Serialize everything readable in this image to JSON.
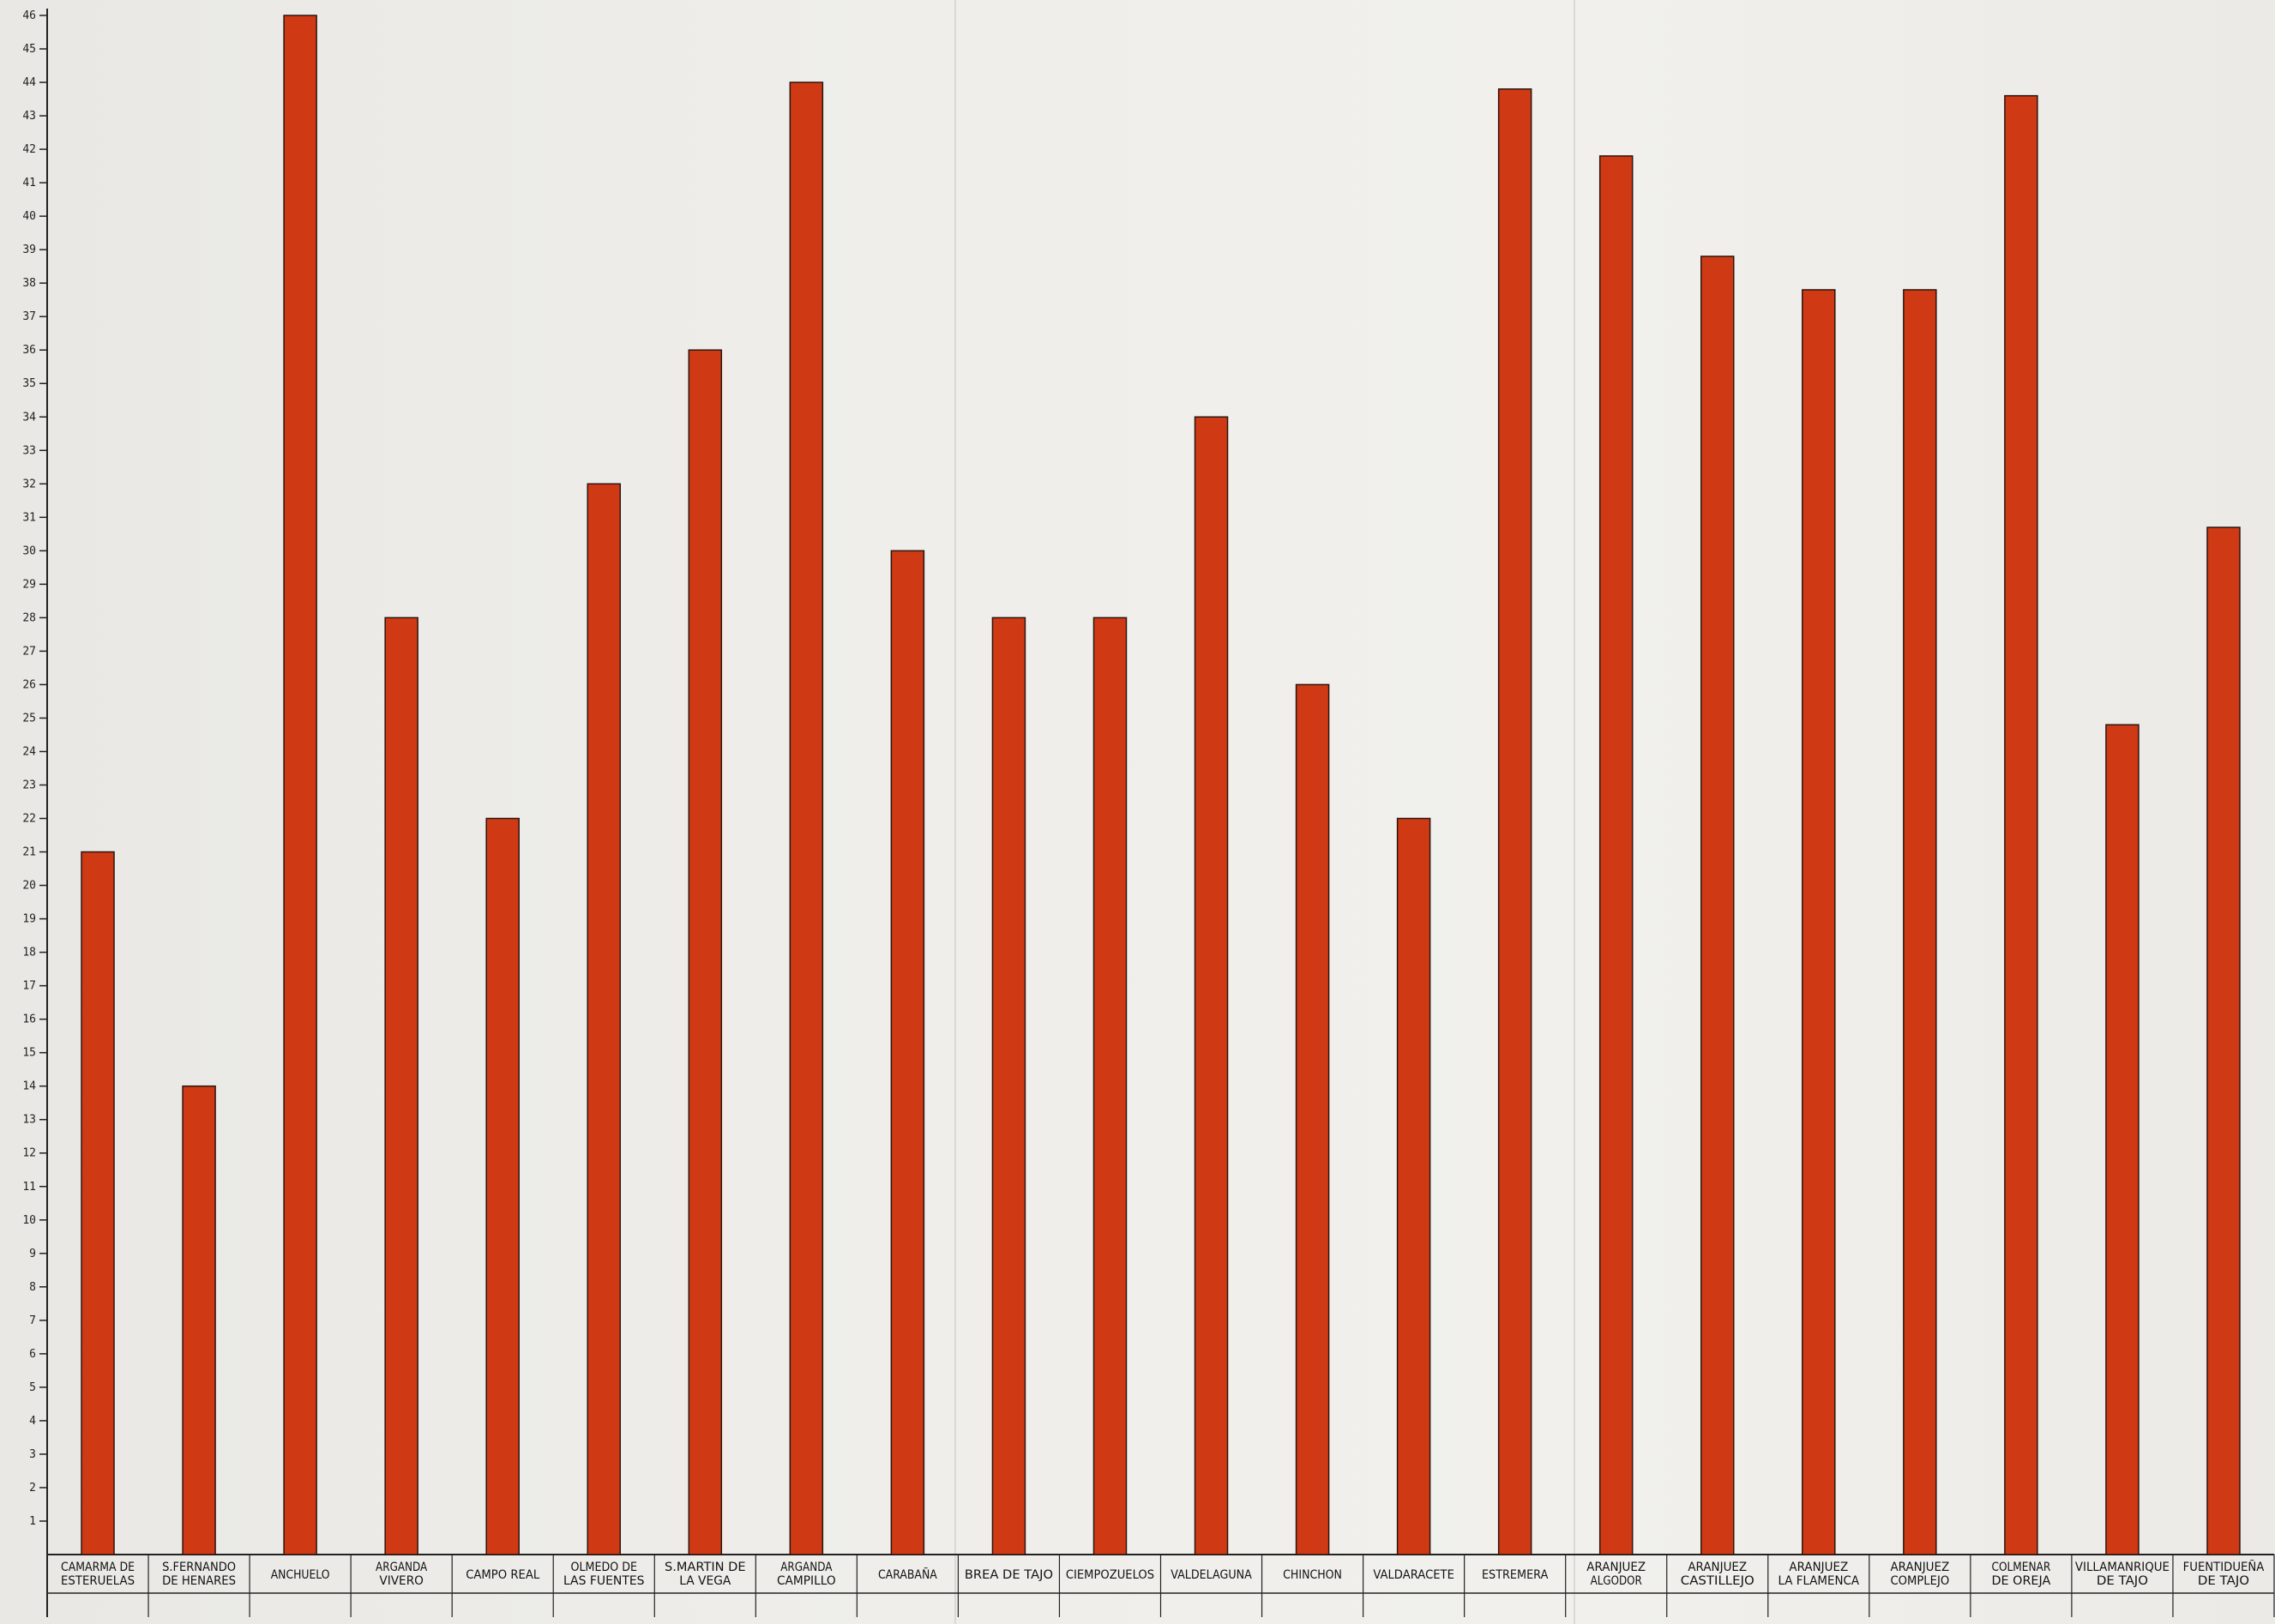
{
  "chart_data": {
    "type": "bar",
    "title": "",
    "xlabel": "",
    "ylabel": "",
    "ylim": [
      0,
      46
    ],
    "yticks": [
      "1",
      "2",
      "3",
      "4",
      "5",
      "6",
      "7",
      "8",
      "9",
      "10",
      "11",
      "12",
      "13",
      "14",
      "15",
      "16",
      "17",
      "18",
      "19",
      "20",
      "21",
      "22",
      "23",
      "24",
      "25",
      "26",
      "27",
      "28",
      "29",
      "30",
      "31",
      "32",
      "33",
      "34",
      "35",
      "36",
      "37",
      "38",
      "39",
      "40",
      "41",
      "42",
      "43",
      "44",
      "45",
      "46"
    ],
    "categories": [
      [
        "CAMARMA DE",
        "ESTERUELAS"
      ],
      [
        "S.FERNANDO",
        "DE HENARES"
      ],
      [
        "ANCHUELO"
      ],
      [
        "ARGANDA",
        "VIVERO"
      ],
      [
        "CAMPO REAL"
      ],
      [
        "OLMEDO DE",
        "LAS FUENTES"
      ],
      [
        "S.MARTIN DE",
        "LA VEGA"
      ],
      [
        "ARGANDA",
        "CAMPILLO"
      ],
      [
        "CARABAÑA"
      ],
      [
        "BREA DE TAJO"
      ],
      [
        "CIEMPOZUELOS"
      ],
      [
        "VALDELAGUNA"
      ],
      [
        "CHINCHON"
      ],
      [
        "VALDARACETE"
      ],
      [
        "ESTREMERA"
      ],
      [
        "ARANJUEZ",
        "ALGODOR"
      ],
      [
        "ARANJUEZ",
        "CASTILLEJO"
      ],
      [
        "ARANJUEZ",
        "LA FLAMENCA"
      ],
      [
        "ARANJUEZ",
        "COMPLEJO"
      ],
      [
        "COLMENAR",
        "DE OREJA"
      ],
      [
        "VILLAMANRIQUE",
        "DE TAJO"
      ],
      [
        "FUENTIDUEÑA",
        "DE TAJO"
      ]
    ],
    "values": [
      21,
      14,
      46,
      28,
      22,
      32,
      36,
      44,
      30,
      28,
      28,
      34,
      26,
      22,
      43.8,
      41.8,
      38.8,
      37.8,
      37.8,
      43.6,
      24.8,
      30.7
    ],
    "colors": {
      "bar": "#cf3a14",
      "bar_edge": "#2a1510",
      "axis": "#222222",
      "text": "#111111"
    },
    "grid": false,
    "legend": "none"
  }
}
